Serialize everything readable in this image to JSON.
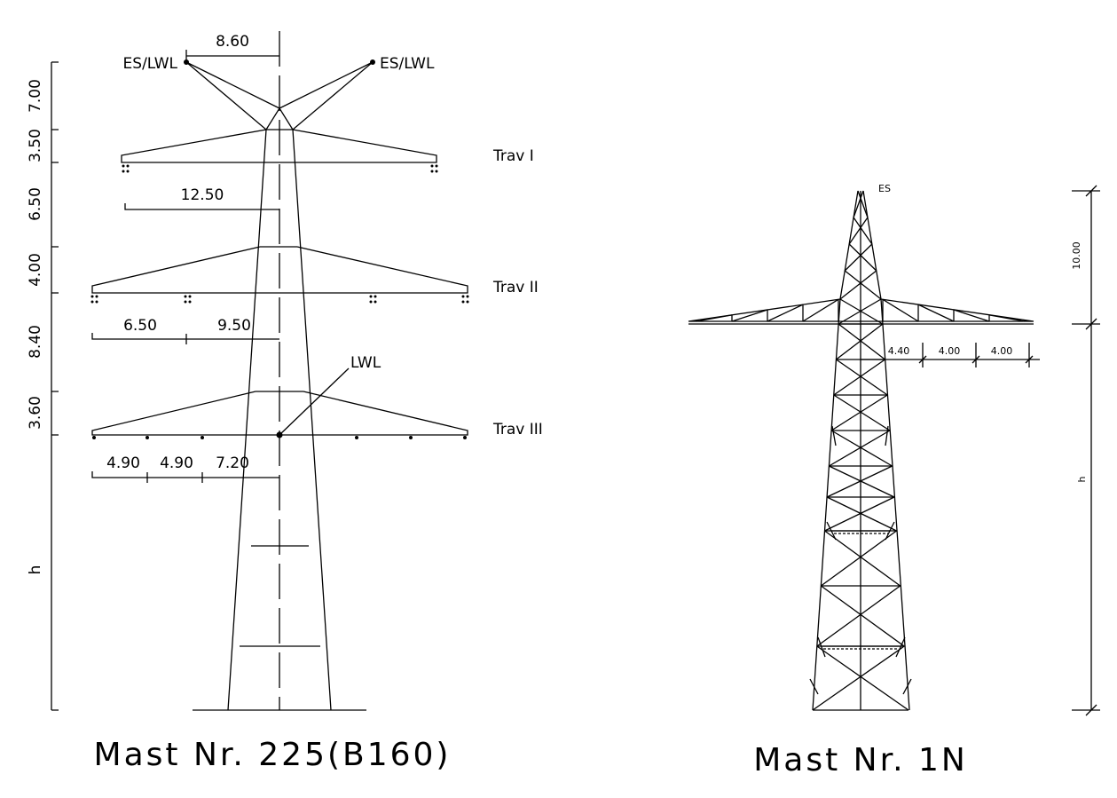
{
  "left_mast": {
    "title": "Mast Nr. 225(B160)",
    "earth_wire_labels": [
      "ES/LWL",
      "ES/LWL"
    ],
    "crossarm_labels": [
      "Trav I",
      "Trav II",
      "Trav III"
    ],
    "lwl_label": "LWL",
    "vertical_dimensions": [
      "7.00",
      "3.50",
      "6.50",
      "4.00",
      "8.40",
      "3.60",
      "h"
    ],
    "horizontal_dimensions": [
      "8.60",
      "12.50",
      "6.50",
      "9.50",
      "4.90",
      "4.90",
      "7.20"
    ]
  },
  "right_mast": {
    "title": "Mast Nr. 1N",
    "earth_wire_label": "ES",
    "vertical_dimensions": [
      "10.00",
      "h"
    ],
    "horizontal_dimensions": [
      "4.40",
      "4.00",
      "4.00"
    ]
  }
}
